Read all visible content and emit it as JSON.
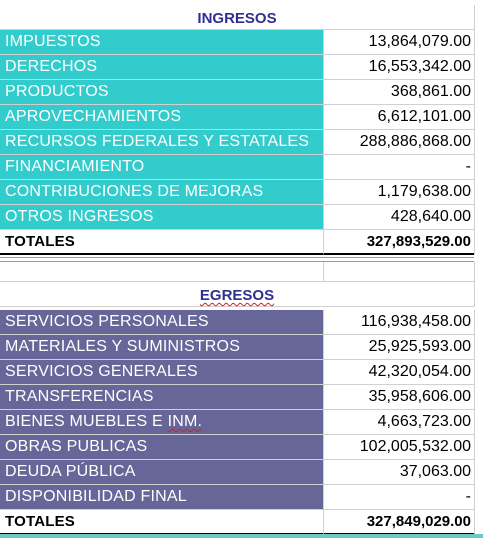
{
  "ingresos": {
    "title": "INGRESOS",
    "items": [
      {
        "label": "IMPUESTOS",
        "value": "13,864,079.00"
      },
      {
        "label": "DERECHOS",
        "value": "16,553,342.00"
      },
      {
        "label": "PRODUCTOS",
        "value": "368,861.00"
      },
      {
        "label": "APROVECHAMIENTOS",
        "value": "6,612,101.00"
      },
      {
        "label": "RECURSOS FEDERALES Y ESTATALES",
        "value": "288,886,868.00"
      },
      {
        "label": "FINANCIAMIENTO",
        "value": "-"
      },
      {
        "label": "CONTRIBUCIONES DE MEJORAS",
        "value": "1,179,638.00"
      },
      {
        "label": "OTROS INGRESOS",
        "value": "428,640.00"
      }
    ],
    "total_label": "TOTALES",
    "total_value": "327,893,529.00"
  },
  "egresos": {
    "title": "EGRESOS",
    "items": [
      {
        "label": "SERVICIOS PERSONALES",
        "value": "116,938,458.00"
      },
      {
        "label": "MATERIALES Y SUMINISTROS",
        "value": "25,925,593.00"
      },
      {
        "label": "SERVICIOS GENERALES",
        "value": "42,320,054.00"
      },
      {
        "label": "TRANSFERENCIAS",
        "value": "35,958,606.00"
      },
      {
        "label_main": "BIENES MUEBLES E ",
        "label_tail": "INM.",
        "value": "4,663,723.00"
      },
      {
        "label": "OBRAS PUBLICAS",
        "value": "102,005,532.00"
      },
      {
        "label": "DEUDA PÚBLICA",
        "value": "37,063.00"
      },
      {
        "label": "DISPONIBILIDAD FINAL",
        "value": "-"
      }
    ],
    "total_label": "TOTALES",
    "total_value": "327,849,029.00"
  },
  "colors": {
    "ingresos_fill": "#33cccc",
    "egresos_fill": "#666699",
    "title_text": "#2e3192"
  }
}
